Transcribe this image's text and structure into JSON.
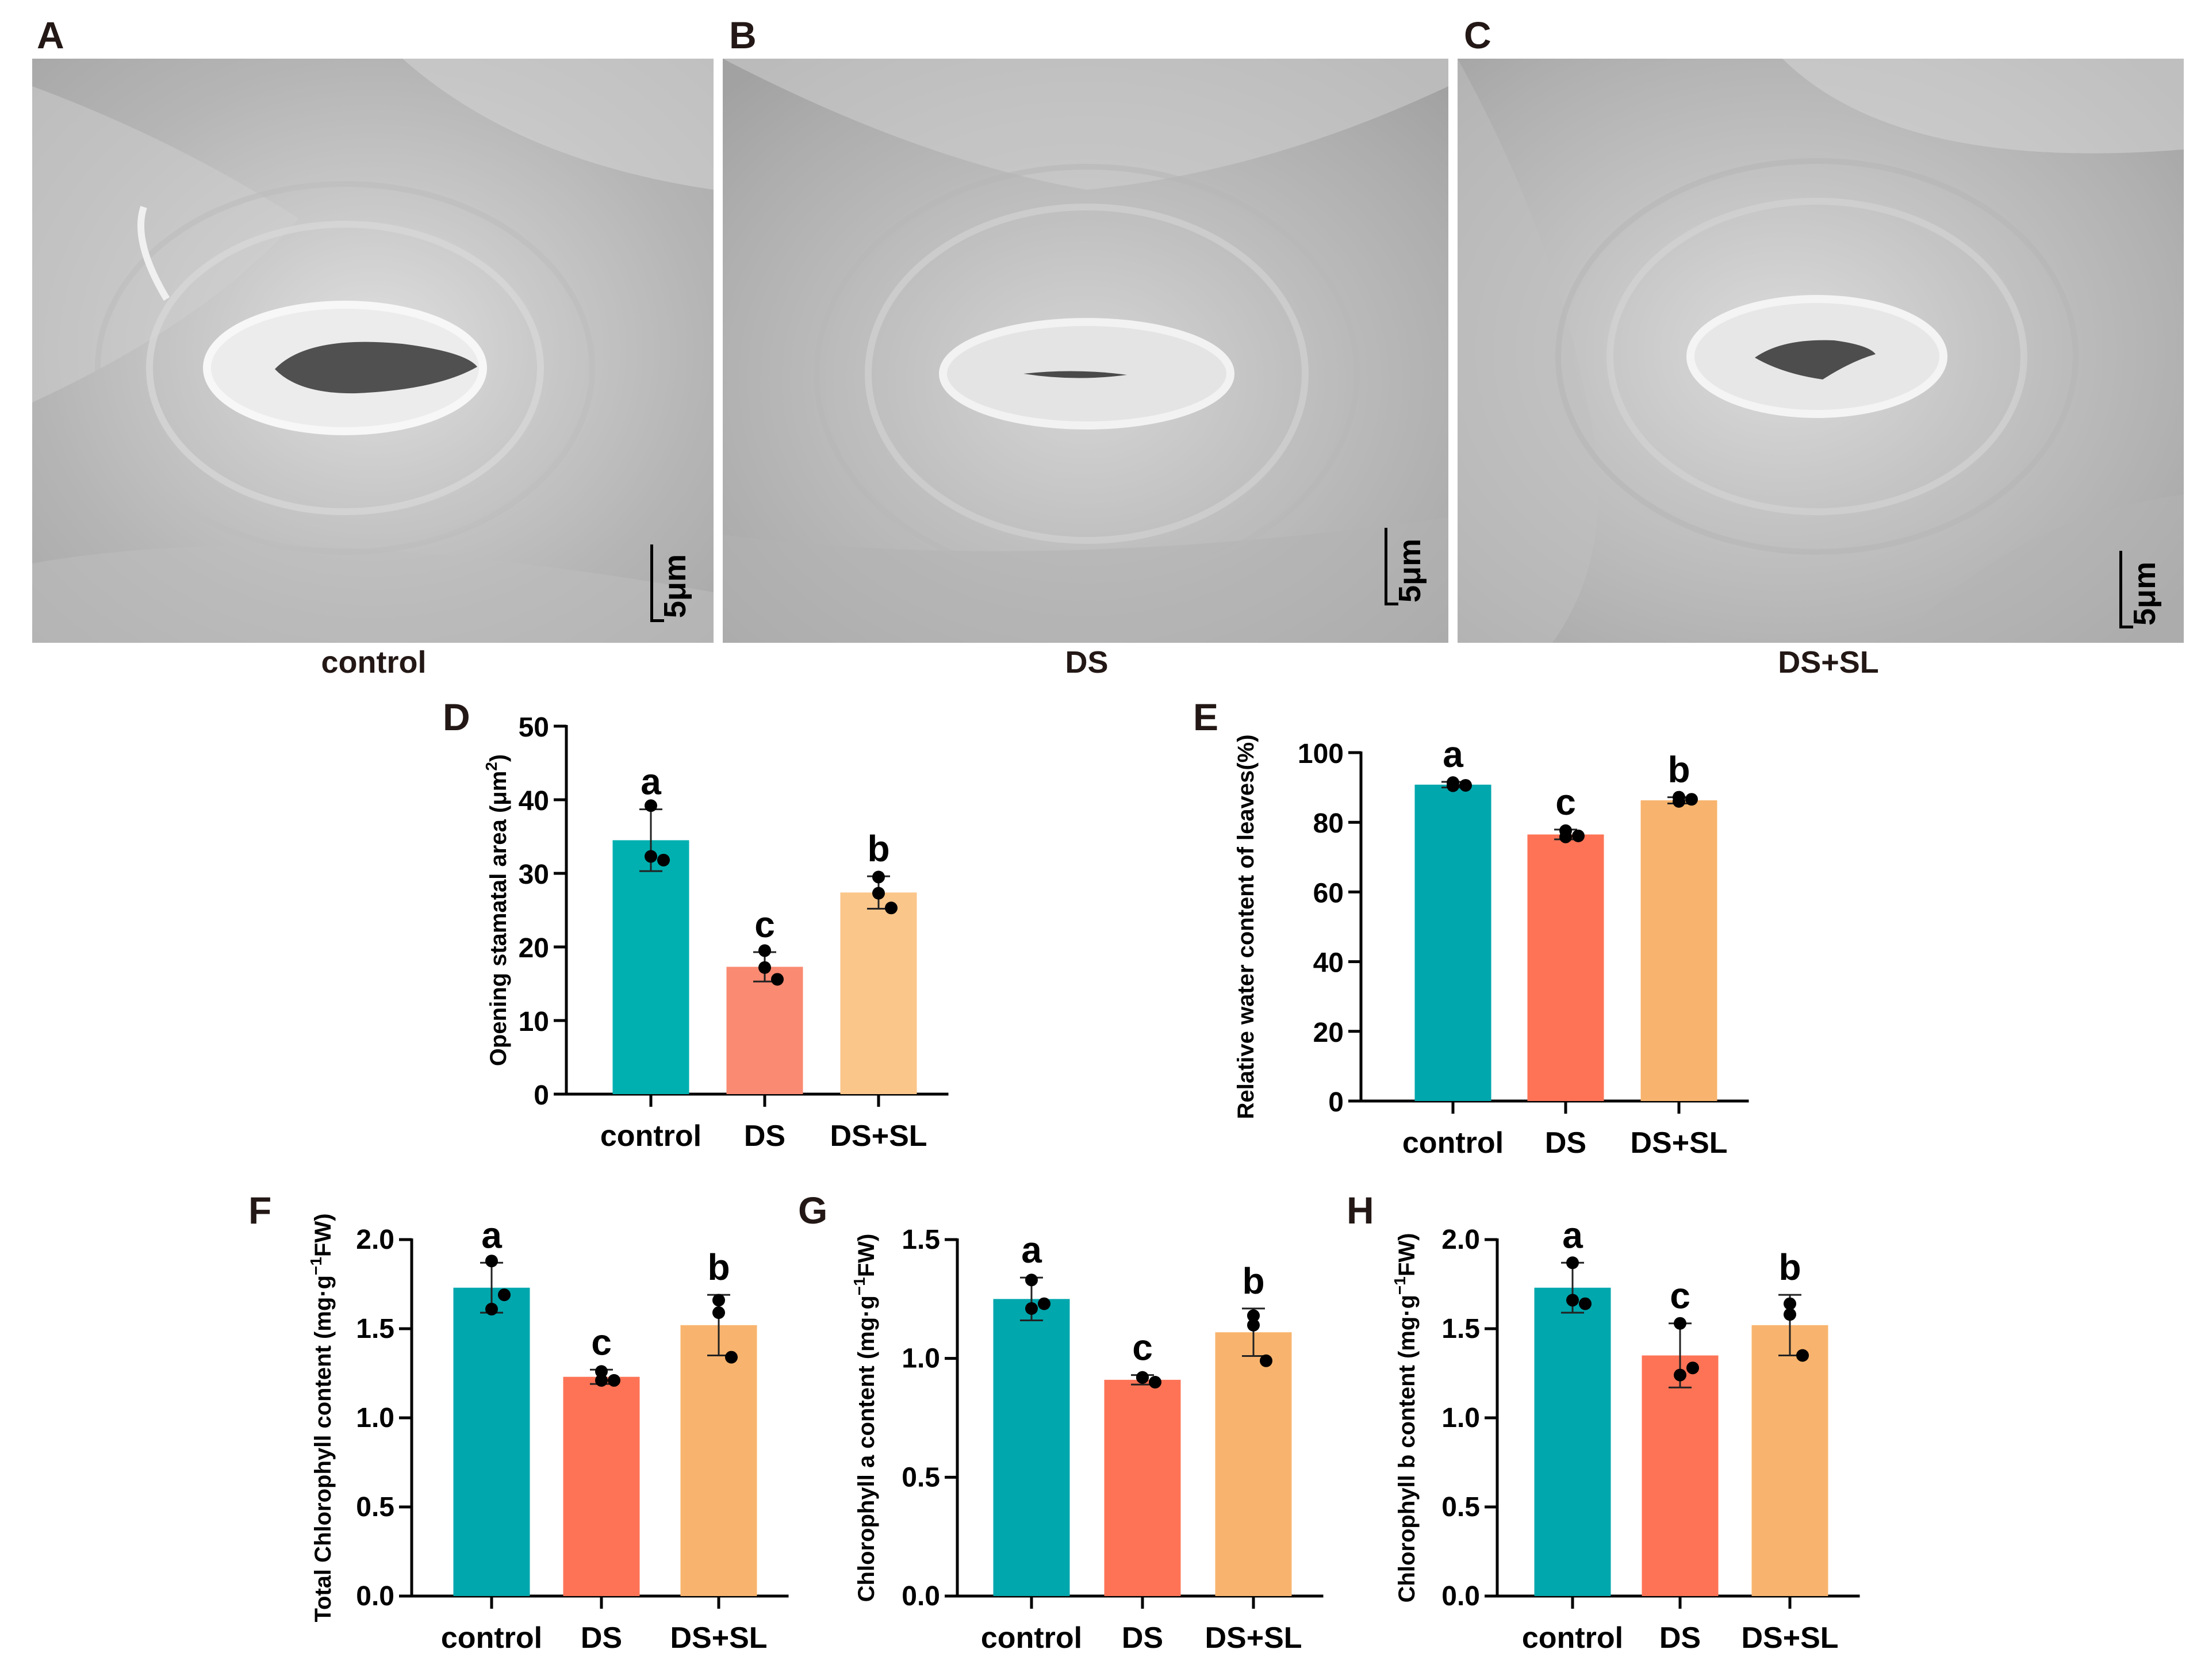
{
  "micrographs": [
    {
      "panel": "A",
      "caption": "control",
      "scale_bar": "5μm"
    },
    {
      "panel": "B",
      "caption": "DS",
      "scale_bar": "5μm"
    },
    {
      "panel": "C",
      "caption": "DS+SL",
      "scale_bar": "5μm"
    }
  ],
  "chart_data": [
    {
      "panel": "D",
      "type": "bar",
      "ylabel_main": "Opening stamatal area (μm",
      "ylabel_sup": "2",
      "ylabel_end": ")",
      "ylim": [
        0,
        50
      ],
      "ticks": [
        0,
        10,
        20,
        30,
        40,
        50
      ],
      "categories": [
        "control",
        "DS",
        "DS+SL"
      ],
      "values": [
        34.5,
        17.3,
        27.4
      ],
      "errors": [
        4.2,
        2.0,
        2.2
      ],
      "points": [
        [
          39.2,
          32.3,
          31.8
        ],
        [
          19.5,
          17.2,
          15.6
        ],
        [
          29.5,
          27.3,
          25.3
        ]
      ],
      "letters": [
        "a",
        "c",
        "b"
      ],
      "colors": [
        "#00b0b0",
        "#fa8a72",
        "#fac68a"
      ]
    },
    {
      "panel": "E",
      "type": "bar",
      "ylabel_main": "Relative water content of leaves(%)",
      "ylabel_sup": "",
      "ylabel_end": "",
      "ylim": [
        0,
        100
      ],
      "ticks": [
        0,
        20,
        40,
        60,
        80,
        100
      ],
      "categories": [
        "control",
        "DS",
        "DS+SL"
      ],
      "values": [
        90.8,
        76.5,
        86.3
      ],
      "errors": [
        0.8,
        1.4,
        0.9
      ],
      "points": [
        [
          90.5,
          91.4,
          90.6
        ],
        [
          75.8,
          77.6,
          76.1
        ],
        [
          86.0,
          87.2,
          86.6
        ]
      ],
      "letters": [
        "a",
        "c",
        "b"
      ],
      "colors": [
        "#00a7ad",
        "#fe7356",
        "#f8b46e"
      ]
    },
    {
      "panel": "F",
      "type": "bar",
      "ylabel_main": "Total Chlorophyll content  (mg·g",
      "ylabel_sup": "−1",
      "ylabel_end": "FW)",
      "ylim": [
        0,
        2.0
      ],
      "ticks": [
        "0.0",
        "0.5",
        "1.0",
        "1.5",
        "2.0"
      ],
      "categories": [
        "control",
        "DS",
        "DS+SL"
      ],
      "values": [
        1.73,
        1.23,
        1.52
      ],
      "errors": [
        0.14,
        0.04,
        0.17
      ],
      "points": [
        [
          1.88,
          1.61,
          1.69
        ],
        [
          1.26,
          1.21,
          1.21
        ],
        [
          1.66,
          1.59,
          1.34
        ]
      ],
      "letters": [
        "a",
        "c",
        "b"
      ],
      "colors": [
        "#00a7ad",
        "#fe7356",
        "#f8b46e"
      ]
    },
    {
      "panel": "G",
      "type": "bar",
      "ylabel_main": "Chlorophyll a content  (mg·g",
      "ylabel_sup": "−1",
      "ylabel_end": "FW)",
      "ylim": [
        0,
        1.5
      ],
      "ticks": [
        "0.0",
        "0.5",
        "1.0",
        "1.5"
      ],
      "categories": [
        "control",
        "DS",
        "DS+SL"
      ],
      "values": [
        1.25,
        0.91,
        1.11
      ],
      "errors": [
        0.09,
        0.02,
        0.1
      ],
      "points": [
        [
          1.33,
          1.21,
          1.23
        ],
        [
          0.92,
          0.92,
          0.9
        ],
        [
          1.18,
          1.14,
          0.99
        ]
      ],
      "letters": [
        "a",
        "c",
        "b"
      ],
      "colors": [
        "#00a7ad",
        "#fe7356",
        "#f8b46e"
      ]
    },
    {
      "panel": "H",
      "type": "bar",
      "ylabel_main": "Chlorophyll b content  (mg·g",
      "ylabel_sup": "−1",
      "ylabel_end": "FW)",
      "ylim": [
        0,
        2.0
      ],
      "ticks": [
        "0.0",
        "0.5",
        "1.0",
        "1.5",
        "2.0"
      ],
      "categories": [
        "control",
        "DS",
        "DS+SL"
      ],
      "values": [
        1.73,
        1.35,
        1.52
      ],
      "errors": [
        0.14,
        0.18,
        0.17
      ],
      "points": [
        [
          1.87,
          1.66,
          1.64
        ],
        [
          1.53,
          1.24,
          1.28
        ],
        [
          1.64,
          1.58,
          1.35
        ]
      ],
      "letters": [
        "a",
        "c",
        "b"
      ],
      "colors": [
        "#00a7ad",
        "#fe7356",
        "#f8b46e"
      ]
    }
  ]
}
